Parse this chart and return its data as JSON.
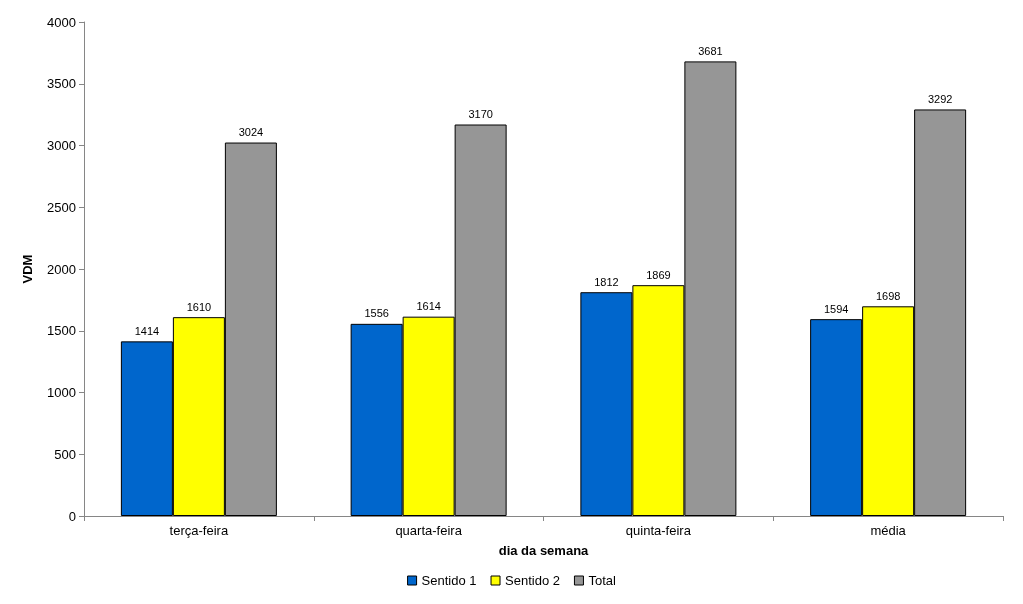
{
  "chart_data": {
    "type": "bar",
    "xlabel": "dia da semana",
    "ylabel": "VDM",
    "categories": [
      "terça-feira",
      "quarta-feira",
      "quinta-feira",
      "média"
    ],
    "series": [
      {
        "name": "Sentido 1",
        "color": "#0066cc",
        "values": [
          1414,
          1556,
          1812,
          1594
        ]
      },
      {
        "name": "Sentido 2",
        "color": "#ffff00",
        "values": [
          1610,
          1614,
          1869,
          1698
        ]
      },
      {
        "name": "Total",
        "color": "#969696",
        "values": [
          3024,
          3170,
          3681,
          3292
        ]
      }
    ],
    "ylim": [
      0,
      4000
    ],
    "yticks": [
      0,
      500,
      1000,
      1500,
      2000,
      2500,
      3000,
      3500,
      4000
    ],
    "grid": false,
    "legend": "bottom",
    "data_labels": true
  }
}
